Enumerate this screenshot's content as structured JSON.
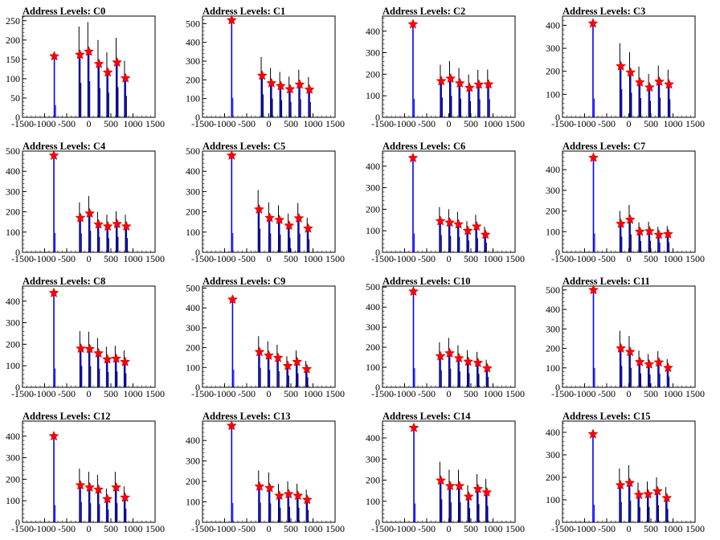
{
  "colors": {
    "signal": "#0000ff",
    "background_hist": "#000000",
    "peak_marker": "#ff0000"
  },
  "chart_data": [
    {
      "type": "bar",
      "title": "Address Levels: C0",
      "xlim": [
        -1500,
        1500
      ],
      "ylim": [
        0,
        262
      ],
      "yticks": [
        0,
        50,
        100,
        150,
        200,
        250
      ],
      "xticks": [
        -1500,
        -1000,
        -500,
        0,
        500,
        1000,
        1500
      ],
      "peaks": [
        {
          "x": -780,
          "y": 158
        },
        {
          "x": -200,
          "y": 162
        },
        {
          "x": 0,
          "y": 170
        },
        {
          "x": 230,
          "y": 138
        },
        {
          "x": 430,
          "y": 116
        },
        {
          "x": 640,
          "y": 142
        },
        {
          "x": 830,
          "y": 101
        }
      ]
    },
    {
      "type": "bar",
      "title": "Address Levels: C1",
      "xlim": [
        -1500,
        1500
      ],
      "ylim": [
        0,
        540
      ],
      "yticks": [
        0,
        100,
        200,
        300,
        400,
        500
      ],
      "xticks": [
        -1500,
        -1000,
        -500,
        0,
        500,
        1000,
        1500
      ],
      "peaks": [
        {
          "x": -840,
          "y": 518
        },
        {
          "x": -150,
          "y": 222
        },
        {
          "x": 60,
          "y": 182
        },
        {
          "x": 270,
          "y": 167
        },
        {
          "x": 480,
          "y": 150
        },
        {
          "x": 700,
          "y": 175
        },
        {
          "x": 920,
          "y": 148
        }
      ]
    },
    {
      "type": "bar",
      "title": "Address Levels: C2",
      "xlim": [
        -1500,
        1500
      ],
      "ylim": [
        0,
        470
      ],
      "yticks": [
        0,
        100,
        200,
        300,
        400
      ],
      "xticks": [
        -1500,
        -1000,
        -500,
        0,
        500,
        1000,
        1500
      ],
      "peaks": [
        {
          "x": -810,
          "y": 432
        },
        {
          "x": -170,
          "y": 168
        },
        {
          "x": 40,
          "y": 180
        },
        {
          "x": 250,
          "y": 158
        },
        {
          "x": 470,
          "y": 137
        },
        {
          "x": 680,
          "y": 152
        },
        {
          "x": 900,
          "y": 153
        }
      ]
    },
    {
      "type": "bar",
      "title": "Address Levels: C3",
      "xlim": [
        -1500,
        1500
      ],
      "ylim": [
        0,
        440
      ],
      "yticks": [
        0,
        100,
        200,
        300,
        400
      ],
      "xticks": [
        -1500,
        -1000,
        -500,
        0,
        500,
        1000,
        1500
      ],
      "peaks": [
        {
          "x": -810,
          "y": 408
        },
        {
          "x": -180,
          "y": 222
        },
        {
          "x": 40,
          "y": 195
        },
        {
          "x": 250,
          "y": 152
        },
        {
          "x": 470,
          "y": 130
        },
        {
          "x": 690,
          "y": 155
        },
        {
          "x": 910,
          "y": 143
        }
      ]
    },
    {
      "type": "bar",
      "title": "Address Levels: C4",
      "xlim": [
        -1500,
        1500
      ],
      "ylim": [
        0,
        500
      ],
      "yticks": [
        0,
        100,
        200,
        300,
        400,
        500
      ],
      "xticks": [
        -1500,
        -1000,
        -500,
        0,
        500,
        1000,
        1500
      ],
      "peaks": [
        {
          "x": -790,
          "y": 478
        },
        {
          "x": -190,
          "y": 170
        },
        {
          "x": 20,
          "y": 192
        },
        {
          "x": 220,
          "y": 138
        },
        {
          "x": 430,
          "y": 128
        },
        {
          "x": 640,
          "y": 140
        },
        {
          "x": 850,
          "y": 128
        }
      ]
    },
    {
      "type": "bar",
      "title": "Address Levels: C5",
      "xlim": [
        -1500,
        1500
      ],
      "ylim": [
        0,
        500
      ],
      "yticks": [
        0,
        100,
        200,
        300,
        400,
        500
      ],
      "xticks": [
        -1500,
        -1000,
        -500,
        0,
        500,
        1000,
        1500
      ],
      "peaks": [
        {
          "x": -840,
          "y": 478
        },
        {
          "x": -220,
          "y": 212
        },
        {
          "x": 20,
          "y": 170
        },
        {
          "x": 240,
          "y": 160
        },
        {
          "x": 460,
          "y": 132
        },
        {
          "x": 680,
          "y": 168
        },
        {
          "x": 890,
          "y": 118
        }
      ]
    },
    {
      "type": "bar",
      "title": "Address Levels: C6",
      "xlim": [
        -1500,
        1500
      ],
      "ylim": [
        0,
        470
      ],
      "yticks": [
        0,
        100,
        200,
        300,
        400
      ],
      "xticks": [
        -1500,
        -1000,
        -500,
        0,
        500,
        1000,
        1500
      ],
      "peaks": [
        {
          "x": -810,
          "y": 438
        },
        {
          "x": -190,
          "y": 145
        },
        {
          "x": 20,
          "y": 138
        },
        {
          "x": 220,
          "y": 130
        },
        {
          "x": 430,
          "y": 100
        },
        {
          "x": 630,
          "y": 120
        },
        {
          "x": 830,
          "y": 82
        }
      ]
    },
    {
      "type": "bar",
      "title": "Address Levels: C7",
      "xlim": [
        -1500,
        1500
      ],
      "ylim": [
        0,
        490
      ],
      "yticks": [
        0,
        100,
        200,
        300,
        400
      ],
      "xticks": [
        -1500,
        -1000,
        -500,
        0,
        500,
        1000,
        1500
      ],
      "peaks": [
        {
          "x": -800,
          "y": 458
        },
        {
          "x": -180,
          "y": 138
        },
        {
          "x": 30,
          "y": 158
        },
        {
          "x": 250,
          "y": 100
        },
        {
          "x": 470,
          "y": 102
        },
        {
          "x": 680,
          "y": 85
        },
        {
          "x": 890,
          "y": 88
        }
      ]
    },
    {
      "type": "bar",
      "title": "Address Levels: C8",
      "xlim": [
        -1500,
        1500
      ],
      "ylim": [
        0,
        470
      ],
      "yticks": [
        0,
        100,
        200,
        300,
        400
      ],
      "xticks": [
        -1500,
        -1000,
        -500,
        0,
        500,
        1000,
        1500
      ],
      "peaks": [
        {
          "x": -790,
          "y": 438
        },
        {
          "x": -180,
          "y": 180
        },
        {
          "x": 20,
          "y": 178
        },
        {
          "x": 220,
          "y": 158
        },
        {
          "x": 420,
          "y": 130
        },
        {
          "x": 620,
          "y": 133
        },
        {
          "x": 820,
          "y": 118
        }
      ]
    },
    {
      "type": "bar",
      "title": "Address Levels: C9",
      "xlim": [
        -1500,
        1500
      ],
      "ylim": [
        0,
        510
      ],
      "yticks": [
        0,
        100,
        200,
        300,
        400,
        500
      ],
      "xticks": [
        -1500,
        -1000,
        -500,
        0,
        500,
        1000,
        1500
      ],
      "peaks": [
        {
          "x": -820,
          "y": 442
        },
        {
          "x": -210,
          "y": 178
        },
        {
          "x": 0,
          "y": 160
        },
        {
          "x": 210,
          "y": 148
        },
        {
          "x": 430,
          "y": 108
        },
        {
          "x": 640,
          "y": 128
        },
        {
          "x": 860,
          "y": 92
        }
      ]
    },
    {
      "type": "bar",
      "title": "Address Levels: C10",
      "xlim": [
        -1500,
        1500
      ],
      "ylim": [
        0,
        505
      ],
      "yticks": [
        0,
        100,
        200,
        300,
        400,
        500
      ],
      "xticks": [
        -1500,
        -1000,
        -500,
        0,
        500,
        1000,
        1500
      ],
      "peaks": [
        {
          "x": -800,
          "y": 478
        },
        {
          "x": -190,
          "y": 155
        },
        {
          "x": 20,
          "y": 170
        },
        {
          "x": 230,
          "y": 145
        },
        {
          "x": 440,
          "y": 128
        },
        {
          "x": 660,
          "y": 122
        },
        {
          "x": 870,
          "y": 95
        }
      ]
    },
    {
      "type": "bar",
      "title": "Address Levels: C11",
      "xlim": [
        -1500,
        1500
      ],
      "ylim": [
        0,
        520
      ],
      "yticks": [
        0,
        100,
        200,
        300,
        400,
        500
      ],
      "xticks": [
        -1500,
        -1000,
        -500,
        0,
        500,
        1000,
        1500
      ],
      "peaks": [
        {
          "x": -800,
          "y": 500
        },
        {
          "x": -180,
          "y": 200
        },
        {
          "x": 30,
          "y": 182
        },
        {
          "x": 250,
          "y": 130
        },
        {
          "x": 460,
          "y": 118
        },
        {
          "x": 680,
          "y": 128
        },
        {
          "x": 890,
          "y": 100
        }
      ]
    },
    {
      "type": "bar",
      "title": "Address Levels: C12",
      "xlim": [
        -1500,
        1500
      ],
      "ylim": [
        0,
        470
      ],
      "yticks": [
        0,
        100,
        200,
        300,
        400
      ],
      "xticks": [
        -1500,
        -1000,
        -500,
        0,
        500,
        1000,
        1500
      ],
      "peaks": [
        {
          "x": -790,
          "y": 400
        },
        {
          "x": -190,
          "y": 172
        },
        {
          "x": 20,
          "y": 162
        },
        {
          "x": 220,
          "y": 152
        },
        {
          "x": 420,
          "y": 108
        },
        {
          "x": 620,
          "y": 162
        },
        {
          "x": 820,
          "y": 115
        }
      ]
    },
    {
      "type": "bar",
      "title": "Address Levels: C13",
      "xlim": [
        -1500,
        1500
      ],
      "ylim": [
        0,
        495
      ],
      "yticks": [
        0,
        100,
        200,
        300,
        400
      ],
      "xticks": [
        -1500,
        -1000,
        -500,
        0,
        500,
        1000,
        1500
      ],
      "peaks": [
        {
          "x": -840,
          "y": 472
        },
        {
          "x": -210,
          "y": 175
        },
        {
          "x": 20,
          "y": 168
        },
        {
          "x": 240,
          "y": 130
        },
        {
          "x": 450,
          "y": 138
        },
        {
          "x": 660,
          "y": 130
        },
        {
          "x": 870,
          "y": 110
        }
      ]
    },
    {
      "type": "bar",
      "title": "Address Levels: C14",
      "xlim": [
        -1500,
        1500
      ],
      "ylim": [
        0,
        480
      ],
      "yticks": [
        0,
        100,
        200,
        300,
        400
      ],
      "xticks": [
        -1500,
        -1000,
        -500,
        0,
        500,
        1000,
        1500
      ],
      "peaks": [
        {
          "x": -790,
          "y": 448
        },
        {
          "x": -180,
          "y": 198
        },
        {
          "x": 30,
          "y": 172
        },
        {
          "x": 240,
          "y": 172
        },
        {
          "x": 450,
          "y": 122
        },
        {
          "x": 660,
          "y": 158
        },
        {
          "x": 860,
          "y": 142
        }
      ]
    },
    {
      "type": "bar",
      "title": "Address Levels: C15",
      "xlim": [
        -1500,
        1500
      ],
      "ylim": [
        0,
        450
      ],
      "yticks": [
        0,
        100,
        200,
        300,
        400
      ],
      "xticks": [
        -1500,
        -1000,
        -500,
        0,
        500,
        1000,
        1500
      ],
      "peaks": [
        {
          "x": -810,
          "y": 392
        },
        {
          "x": -190,
          "y": 165
        },
        {
          "x": 20,
          "y": 175
        },
        {
          "x": 230,
          "y": 122
        },
        {
          "x": 440,
          "y": 125
        },
        {
          "x": 650,
          "y": 138
        },
        {
          "x": 860,
          "y": 108
        }
      ]
    }
  ]
}
